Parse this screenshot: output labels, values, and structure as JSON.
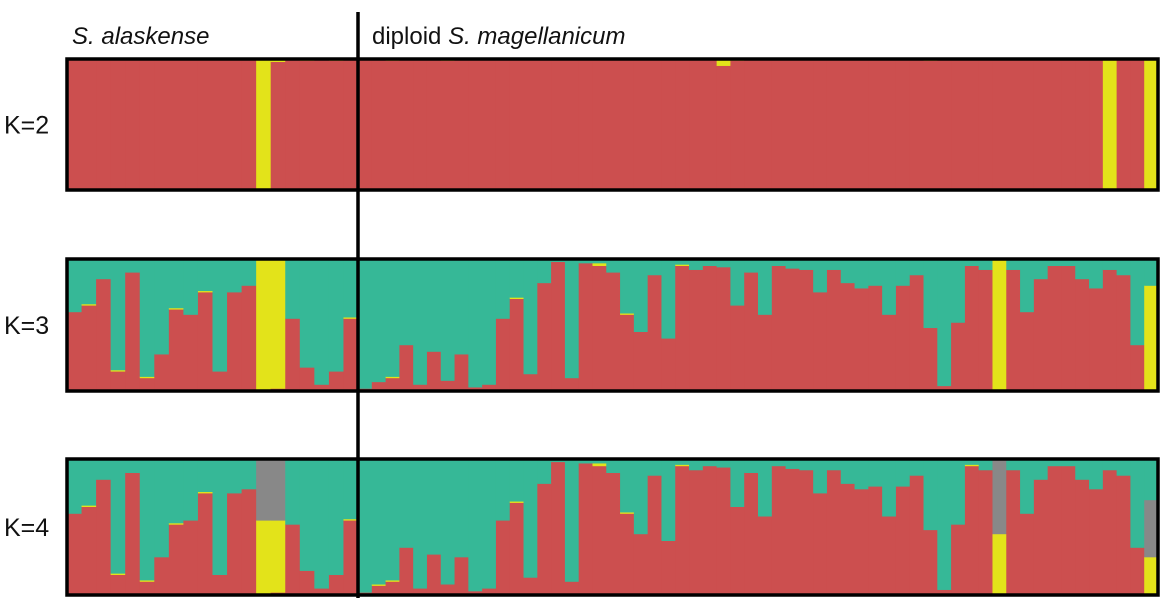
{
  "chart_data": {
    "type": "bar",
    "stacked": true,
    "groups": [
      {
        "italic": "S. alaskense",
        "prefix": "",
        "n": 20
      },
      {
        "italic": "S. magellanicum",
        "prefix": "diploid ",
        "n": 58
      }
    ],
    "colors": {
      "red": "#CC4F4F",
      "green": "#36B897",
      "yellow": "#E3E31A",
      "gray": "#888888"
    },
    "panels": [
      {
        "label": "K=2",
        "segment_order": [
          "red",
          "yellow"
        ],
        "individuals": [
          [
            1,
            0
          ],
          [
            1,
            0
          ],
          [
            1,
            0
          ],
          [
            1,
            0
          ],
          [
            1,
            0
          ],
          [
            1,
            0
          ],
          [
            1,
            0
          ],
          [
            1,
            0
          ],
          [
            1,
            0
          ],
          [
            1,
            0
          ],
          [
            1,
            0
          ],
          [
            1,
            0
          ],
          [
            1,
            0
          ],
          [
            0,
            1
          ],
          [
            0.98,
            0.02
          ],
          [
            1,
            0
          ],
          [
            0.99,
            0.01
          ],
          [
            1,
            0
          ],
          [
            0.99,
            0.01
          ],
          [
            1,
            0
          ],
          [
            1,
            0
          ],
          [
            1,
            0
          ],
          [
            0.99,
            0.01
          ],
          [
            1,
            0
          ],
          [
            1,
            0
          ],
          [
            1,
            0
          ],
          [
            0.99,
            0.01
          ],
          [
            1,
            0
          ],
          [
            1,
            0
          ],
          [
            1,
            0
          ],
          [
            1,
            0
          ],
          [
            1,
            0
          ],
          [
            1,
            0
          ],
          [
            1,
            0
          ],
          [
            1,
            0
          ],
          [
            1,
            0
          ],
          [
            1,
            0
          ],
          [
            1,
            0
          ],
          [
            1,
            0
          ],
          [
            1,
            0
          ],
          [
            1,
            0
          ],
          [
            1,
            0
          ],
          [
            1,
            0
          ],
          [
            1,
            0
          ],
          [
            1,
            0
          ],
          [
            1,
            0
          ],
          [
            0.95,
            0.05
          ],
          [
            0.99,
            0.01
          ],
          [
            1,
            0
          ],
          [
            1,
            0
          ],
          [
            1,
            0
          ],
          [
            1,
            0
          ],
          [
            1,
            0
          ],
          [
            1,
            0
          ],
          [
            1,
            0
          ],
          [
            1,
            0
          ],
          [
            1,
            0
          ],
          [
            1,
            0
          ],
          [
            1,
            0
          ],
          [
            1,
            0
          ],
          [
            1,
            0
          ],
          [
            0.99,
            0.01
          ],
          [
            1,
            0
          ],
          [
            1,
            0
          ],
          [
            1,
            0
          ],
          [
            1,
            0
          ],
          [
            1,
            0
          ],
          [
            1,
            0
          ],
          [
            1,
            0
          ],
          [
            1,
            0
          ],
          [
            1,
            0
          ],
          [
            1,
            0
          ],
          [
            1,
            0
          ],
          [
            1,
            0
          ],
          [
            0,
            1
          ],
          [
            1,
            0
          ],
          [
            1,
            0
          ],
          [
            0,
            1
          ]
        ]
      },
      {
        "label": "K=3",
        "segment_order": [
          "red",
          "yellow",
          "green"
        ],
        "individuals": [
          [
            0.6,
            0,
            0.4
          ],
          [
            0.65,
            0.01,
            0.34
          ],
          [
            0.85,
            0,
            0.15
          ],
          [
            0.15,
            0.01,
            0.84
          ],
          [
            0.9,
            0,
            0.1
          ],
          [
            0.1,
            0.01,
            0.89
          ],
          [
            0.28,
            0,
            0.72
          ],
          [
            0.62,
            0.01,
            0.37
          ],
          [
            0.58,
            0,
            0.42
          ],
          [
            0.75,
            0.01,
            0.24
          ],
          [
            0.15,
            0,
            0.85
          ],
          [
            0.75,
            0,
            0.25
          ],
          [
            0.8,
            0,
            0.2
          ],
          [
            0,
            1,
            0
          ],
          [
            0.02,
            0.98,
            0
          ],
          [
            0.55,
            0,
            0.45
          ],
          [
            0.18,
            0,
            0.82
          ],
          [
            0.05,
            0,
            0.95
          ],
          [
            0.15,
            0,
            0.85
          ],
          [
            0.55,
            0.01,
            0.44
          ],
          [
            0.02,
            0,
            0.98
          ],
          [
            0.07,
            0,
            0.93
          ],
          [
            0.1,
            0.01,
            0.89
          ],
          [
            0.35,
            0,
            0.65
          ],
          [
            0.05,
            0,
            0.95
          ],
          [
            0.3,
            0,
            0.7
          ],
          [
            0.08,
            0,
            0.92
          ],
          [
            0.28,
            0,
            0.72
          ],
          [
            0.03,
            0,
            0.97
          ],
          [
            0.05,
            0,
            0.95
          ],
          [
            0.55,
            0,
            0.45
          ],
          [
            0.7,
            0.01,
            0.29
          ],
          [
            0.13,
            0,
            0.87
          ],
          [
            0.82,
            0,
            0.18
          ],
          [
            0.98,
            0,
            0.02
          ],
          [
            0.1,
            0,
            0.9
          ],
          [
            0.97,
            0,
            0.03
          ],
          [
            0.95,
            0.02,
            0.03
          ],
          [
            0.9,
            0,
            0.1
          ],
          [
            0.58,
            0.01,
            0.41
          ],
          [
            0.45,
            0,
            0.55
          ],
          [
            0.88,
            0,
            0.12
          ],
          [
            0.4,
            0,
            0.6
          ],
          [
            0.95,
            0.01,
            0.04
          ],
          [
            0.92,
            0,
            0.08
          ],
          [
            0.95,
            0,
            0.05
          ],
          [
            0.94,
            0,
            0.06
          ],
          [
            0.65,
            0,
            0.35
          ],
          [
            0.9,
            0,
            0.1
          ],
          [
            0.58,
            0,
            0.42
          ],
          [
            0.95,
            0,
            0.05
          ],
          [
            0.93,
            0,
            0.07
          ],
          [
            0.92,
            0,
            0.08
          ],
          [
            0.75,
            0,
            0.25
          ],
          [
            0.92,
            0,
            0.08
          ],
          [
            0.82,
            0,
            0.18
          ],
          [
            0.78,
            0,
            0.22
          ],
          [
            0.8,
            0,
            0.2
          ],
          [
            0.58,
            0,
            0.42
          ],
          [
            0.8,
            0,
            0.2
          ],
          [
            0.88,
            0,
            0.12
          ],
          [
            0.48,
            0,
            0.52
          ],
          [
            0.04,
            0,
            0.96
          ],
          [
            0.52,
            0,
            0.48
          ],
          [
            0.95,
            0,
            0.05
          ],
          [
            0.92,
            0,
            0.08
          ],
          [
            0,
            1,
            0
          ],
          [
            0.92,
            0,
            0.08
          ],
          [
            0.6,
            0,
            0.4
          ],
          [
            0.85,
            0,
            0.15
          ],
          [
            0.95,
            0,
            0.05
          ],
          [
            0.95,
            0,
            0.05
          ],
          [
            0.85,
            0,
            0.15
          ],
          [
            0.78,
            0,
            0.22
          ],
          [
            0.92,
            0,
            0.08
          ],
          [
            0.88,
            0,
            0.12
          ],
          [
            0.35,
            0,
            0.65
          ],
          [
            0,
            0.8,
            0.2
          ]
        ]
      },
      {
        "label": "K=4",
        "segment_order": [
          "red",
          "yellow",
          "gray",
          "green"
        ],
        "individuals": [
          [
            0.6,
            0,
            0,
            0.4
          ],
          [
            0.65,
            0.01,
            0,
            0.34
          ],
          [
            0.85,
            0,
            0,
            0.15
          ],
          [
            0.15,
            0.01,
            0,
            0.84
          ],
          [
            0.9,
            0,
            0,
            0.1
          ],
          [
            0.1,
            0.01,
            0,
            0.89
          ],
          [
            0.28,
            0,
            0,
            0.72
          ],
          [
            0.52,
            0.01,
            0,
            0.47
          ],
          [
            0.55,
            0,
            0,
            0.45
          ],
          [
            0.75,
            0.01,
            0,
            0.24
          ],
          [
            0.15,
            0,
            0,
            0.85
          ],
          [
            0.75,
            0,
            0,
            0.25
          ],
          [
            0.78,
            0,
            0,
            0.22
          ],
          [
            0,
            0.55,
            0.45,
            0
          ],
          [
            0.02,
            0.53,
            0.45,
            0
          ],
          [
            0.52,
            0,
            0,
            0.48
          ],
          [
            0.18,
            0,
            0,
            0.82
          ],
          [
            0.05,
            0,
            0,
            0.95
          ],
          [
            0.15,
            0,
            0,
            0.85
          ],
          [
            0.55,
            0.01,
            0,
            0.44
          ],
          [
            0.02,
            0,
            0,
            0.98
          ],
          [
            0.07,
            0.01,
            0,
            0.92
          ],
          [
            0.1,
            0.01,
            0,
            0.89
          ],
          [
            0.35,
            0,
            0,
            0.65
          ],
          [
            0.05,
            0,
            0,
            0.95
          ],
          [
            0.3,
            0,
            0,
            0.7
          ],
          [
            0.08,
            0,
            0,
            0.92
          ],
          [
            0.28,
            0,
            0,
            0.72
          ],
          [
            0.03,
            0,
            0,
            0.97
          ],
          [
            0.05,
            0,
            0,
            0.95
          ],
          [
            0.55,
            0,
            0,
            0.45
          ],
          [
            0.68,
            0.01,
            0,
            0.31
          ],
          [
            0.13,
            0,
            0,
            0.87
          ],
          [
            0.82,
            0,
            0,
            0.18
          ],
          [
            0.98,
            0,
            0,
            0.02
          ],
          [
            0.1,
            0,
            0,
            0.9
          ],
          [
            0.97,
            0,
            0,
            0.03
          ],
          [
            0.95,
            0.02,
            0,
            0.03
          ],
          [
            0.9,
            0,
            0,
            0.1
          ],
          [
            0.6,
            0.01,
            0,
            0.39
          ],
          [
            0.45,
            0,
            0,
            0.55
          ],
          [
            0.88,
            0,
            0,
            0.12
          ],
          [
            0.4,
            0,
            0,
            0.6
          ],
          [
            0.95,
            0.01,
            0,
            0.04
          ],
          [
            0.92,
            0,
            0,
            0.08
          ],
          [
            0.95,
            0,
            0,
            0.05
          ],
          [
            0.94,
            0,
            0,
            0.06
          ],
          [
            0.65,
            0,
            0,
            0.35
          ],
          [
            0.9,
            0,
            0,
            0.1
          ],
          [
            0.58,
            0,
            0,
            0.42
          ],
          [
            0.95,
            0,
            0,
            0.05
          ],
          [
            0.93,
            0,
            0,
            0.07
          ],
          [
            0.92,
            0,
            0,
            0.08
          ],
          [
            0.75,
            0,
            0,
            0.25
          ],
          [
            0.92,
            0,
            0,
            0.08
          ],
          [
            0.82,
            0,
            0,
            0.18
          ],
          [
            0.78,
            0,
            0,
            0.22
          ],
          [
            0.8,
            0,
            0,
            0.2
          ],
          [
            0.58,
            0,
            0,
            0.42
          ],
          [
            0.8,
            0,
            0,
            0.2
          ],
          [
            0.88,
            0,
            0,
            0.12
          ],
          [
            0.48,
            0,
            0,
            0.52
          ],
          [
            0.04,
            0,
            0,
            0.96
          ],
          [
            0.52,
            0,
            0,
            0.48
          ],
          [
            0.95,
            0.01,
            0,
            0.04
          ],
          [
            0.92,
            0,
            0,
            0.08
          ],
          [
            0,
            0.45,
            0.55,
            0
          ],
          [
            0.92,
            0,
            0,
            0.08
          ],
          [
            0.6,
            0,
            0,
            0.4
          ],
          [
            0.85,
            0,
            0,
            0.15
          ],
          [
            0.95,
            0,
            0,
            0.05
          ],
          [
            0.95,
            0,
            0,
            0.05
          ],
          [
            0.85,
            0,
            0,
            0.15
          ],
          [
            0.78,
            0,
            0,
            0.22
          ],
          [
            0.92,
            0,
            0,
            0.08
          ],
          [
            0.88,
            0,
            0,
            0.12
          ],
          [
            0.35,
            0,
            0,
            0.65
          ],
          [
            0,
            0.28,
            0.42,
            0.3
          ]
        ]
      }
    ]
  }
}
